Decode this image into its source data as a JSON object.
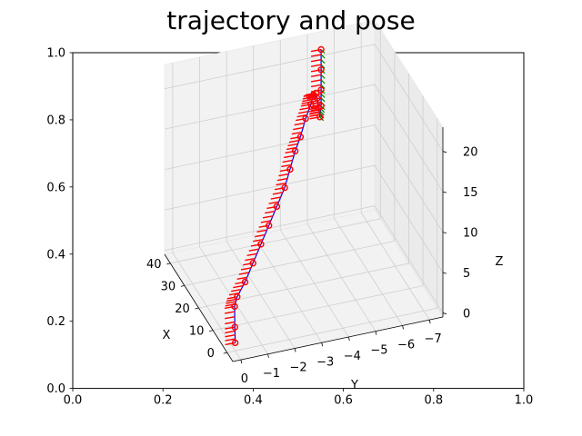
{
  "chart_data": [
    {
      "type": "line",
      "title": "trajectory and pose",
      "xlim": [
        0.0,
        1.0
      ],
      "ylim": [
        0.0,
        1.0
      ],
      "xticks": [
        "0.0",
        "0.2",
        "0.4",
        "0.6",
        "0.8",
        "1.0"
      ],
      "yticks": [
        "0.0",
        "0.2",
        "0.4",
        "0.6",
        "0.8",
        "1.0"
      ],
      "series": []
    },
    {
      "type": "scatter",
      "projection": "3d",
      "xlabel": "X",
      "ylabel": "Y",
      "zlabel": "Z",
      "xlim": [
        -4,
        44
      ],
      "ylim": [
        0.3,
        -7.5
      ],
      "zlim": [
        -0.5,
        23
      ],
      "xticks": [
        "0",
        "10",
        "20",
        "30",
        "40"
      ],
      "yticks": [
        "0",
        "−1",
        "−2",
        "−3",
        "−4",
        "−5",
        "−6",
        "−7"
      ],
      "zticks": [
        "0",
        "5",
        "10",
        "15",
        "20"
      ],
      "grid": true,
      "colors": {
        "pose_arrow": "#ff0000",
        "trajectory": "#0000ff",
        "pose_axis_y": "#008000"
      },
      "x": [
        0,
        4,
        8,
        10,
        12,
        14,
        16,
        18,
        20,
        22,
        24,
        26,
        28,
        30,
        32,
        34,
        36,
        37,
        38,
        39,
        40,
        40,
        40,
        40
      ],
      "y": [
        0.0,
        -0.2,
        -0.4,
        -0.6,
        -1.0,
        -1.4,
        -1.8,
        -2.2,
        -2.6,
        -3.0,
        -3.3,
        -3.6,
        -3.9,
        -4.2,
        -4.5,
        -4.7,
        -4.9,
        -5.0,
        -5.1,
        -5.2,
        -5.3,
        -5.3,
        -5.3,
        -5.3
      ],
      "z": [
        0.5,
        1.2,
        2.5,
        3.0,
        4.0,
        5.5,
        7.0,
        8.5,
        10.0,
        11.5,
        13.0,
        14.5,
        15.5,
        17.0,
        18.0,
        18.5,
        18.0,
        17.0,
        15.5,
        14.0,
        15.0,
        17.0,
        19.5,
        22.0
      ]
    }
  ]
}
